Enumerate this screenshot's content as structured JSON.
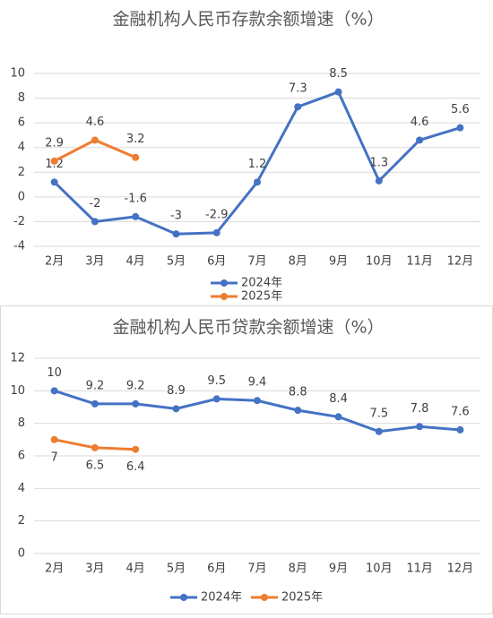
{
  "chart_data": [
    {
      "type": "line",
      "title": "金融机构人民币存款余额增速（%）",
      "categories": [
        "2月",
        "3月",
        "4月",
        "5月",
        "6月",
        "7月",
        "8月",
        "9月",
        "10月",
        "11月",
        "12月"
      ],
      "series": [
        {
          "name": "2024年",
          "color": "#4472c4",
          "values": [
            1.2,
            -2,
            -1.6,
            -3,
            -2.9,
            1.2,
            7.3,
            8.5,
            1.3,
            4.6,
            5.6
          ]
        },
        {
          "name": "2025年",
          "color": "#ed7d31",
          "values": [
            2.9,
            4.6,
            3.2,
            null,
            null,
            null,
            null,
            null,
            null,
            null,
            null
          ]
        }
      ],
      "ylim": [
        -4,
        10
      ],
      "yticks": [
        -4,
        -2,
        0,
        2,
        4,
        6,
        8,
        10
      ],
      "grid": true,
      "legend": "bottom"
    },
    {
      "type": "line",
      "title": "金融机构人民币贷款余额增速（%）",
      "categories": [
        "2月",
        "3月",
        "4月",
        "5月",
        "6月",
        "7月",
        "8月",
        "9月",
        "10月",
        "11月",
        "12月"
      ],
      "series": [
        {
          "name": "2024年",
          "color": "#4472c4",
          "values": [
            10,
            9.2,
            9.2,
            8.9,
            9.5,
            9.4,
            8.8,
            8.4,
            7.5,
            7.8,
            7.6
          ]
        },
        {
          "name": "2025年",
          "color": "#ed7d31",
          "values": [
            7,
            6.5,
            6.4,
            null,
            null,
            null,
            null,
            null,
            null,
            null,
            null
          ]
        }
      ],
      "ylim": [
        0,
        12
      ],
      "yticks": [
        0,
        2,
        4,
        6,
        8,
        10,
        12
      ],
      "grid": true,
      "legend": "bottom"
    }
  ]
}
